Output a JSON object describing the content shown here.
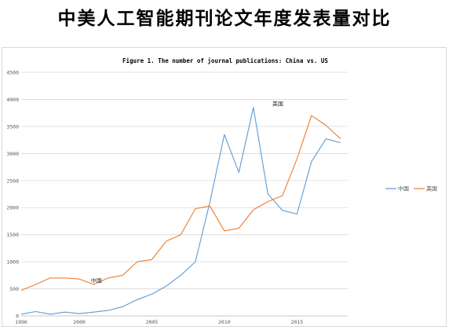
{
  "page": {
    "title": "中美人工智能期刊论文年度发表量对比"
  },
  "chart_data": {
    "type": "line",
    "title": "Figure 1. The number of journal publications: China vs. US",
    "x": [
      1996,
      1997,
      1998,
      1999,
      2000,
      2001,
      2002,
      2003,
      2004,
      2005,
      2006,
      2007,
      2008,
      2009,
      2010,
      2011,
      2012,
      2013,
      2014,
      2015,
      2016,
      2017,
      2018,
      2019
    ],
    "x_tick_labels": [
      "1996",
      "2000",
      "2005",
      "2010",
      "2015"
    ],
    "x_ticks": [
      1996,
      2000,
      2005,
      2010,
      2015
    ],
    "ylim": [
      0,
      4500
    ],
    "y_ticks": [
      0,
      500,
      1000,
      1500,
      2000,
      2500,
      3000,
      3500,
      4000,
      4500
    ],
    "grid": true,
    "legend_position": "right",
    "series": [
      {
        "name": "中国",
        "color": "#5b9bd5",
        "values": [
          30,
          80,
          30,
          70,
          40,
          70,
          100,
          170,
          300,
          400,
          550,
          750,
          1000,
          2100,
          3350,
          2650,
          3850,
          2250,
          1950,
          1880,
          2850,
          3270,
          3200,
          null
        ]
      },
      {
        "name": "美国",
        "color": "#ed7d31",
        "values": [
          470,
          580,
          700,
          700,
          680,
          580,
          700,
          750,
          1000,
          1040,
          1380,
          1500,
          1980,
          2030,
          1570,
          1620,
          1960,
          2110,
          2220,
          2900,
          3700,
          3520,
          3270,
          null
        ]
      }
    ],
    "annotations": [
      {
        "text": "美国",
        "x": 2013.3,
        "y": 3880
      },
      {
        "text": "中国",
        "x": 2000.8,
        "y": 620
      }
    ]
  }
}
